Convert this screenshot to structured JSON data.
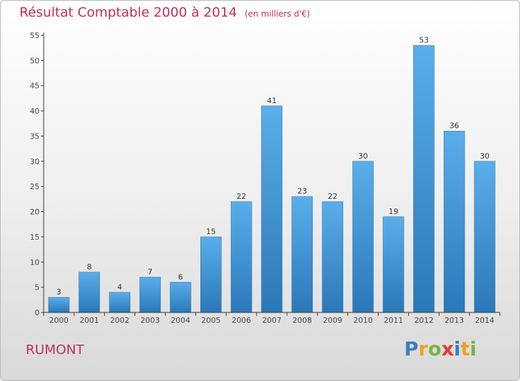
{
  "title": "Résultat Comptable 2000 à 2014",
  "subtitle": "(en milliers d'€)",
  "town": "RUMONT",
  "logo": {
    "letters": [
      "P",
      "r",
      "o",
      "x",
      "i",
      "t",
      "i"
    ],
    "colors": [
      "#3a7fc1",
      "#f0a020",
      "#7cb342",
      "#e53935",
      "#3a7fc1",
      "#f0a020",
      "#7cb342"
    ]
  },
  "colors": {
    "bar_top": "#5aaeea",
    "bar_bottom": "#2a78b8",
    "title": "#c0305a"
  },
  "chart_data": {
    "type": "bar",
    "title": "Résultat Comptable 2000 à 2014",
    "subtitle": "(en milliers d'€)",
    "categories": [
      "2000",
      "2001",
      "2002",
      "2003",
      "2004",
      "2005",
      "2006",
      "2007",
      "2008",
      "2009",
      "2010",
      "2011",
      "2012",
      "2013",
      "2014"
    ],
    "values": [
      3,
      8,
      4,
      7,
      6,
      15,
      22,
      41,
      23,
      22,
      30,
      19,
      53,
      36,
      30
    ],
    "ylim": [
      0,
      55
    ],
    "yticks": [
      0,
      5,
      10,
      15,
      20,
      25,
      30,
      35,
      40,
      45,
      50,
      55
    ],
    "grid": false,
    "data_labels": true
  }
}
